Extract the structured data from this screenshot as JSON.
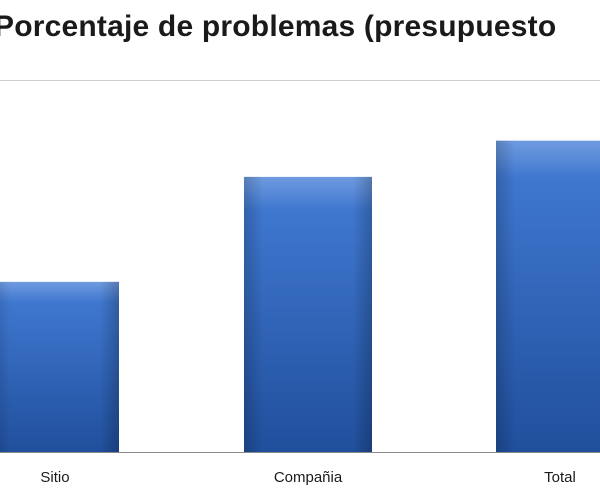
{
  "chart_data": {
    "type": "bar",
    "title": "Porcentaje de problemas (presupuesto",
    "xlabel": "",
    "ylabel": "",
    "categories": [
      "Sitio",
      "Compañia",
      "Total"
    ],
    "values": [
      47,
      76,
      86
    ],
    "ylim": [
      0,
      100
    ],
    "grid": false,
    "legend": "none",
    "colors": {
      "bar_top": "#6f9be0",
      "bar_mid": "#3f77cf",
      "bar_bottom": "#204f9c",
      "axis": "#8a8a8a",
      "text": "#1a1a1a"
    }
  }
}
